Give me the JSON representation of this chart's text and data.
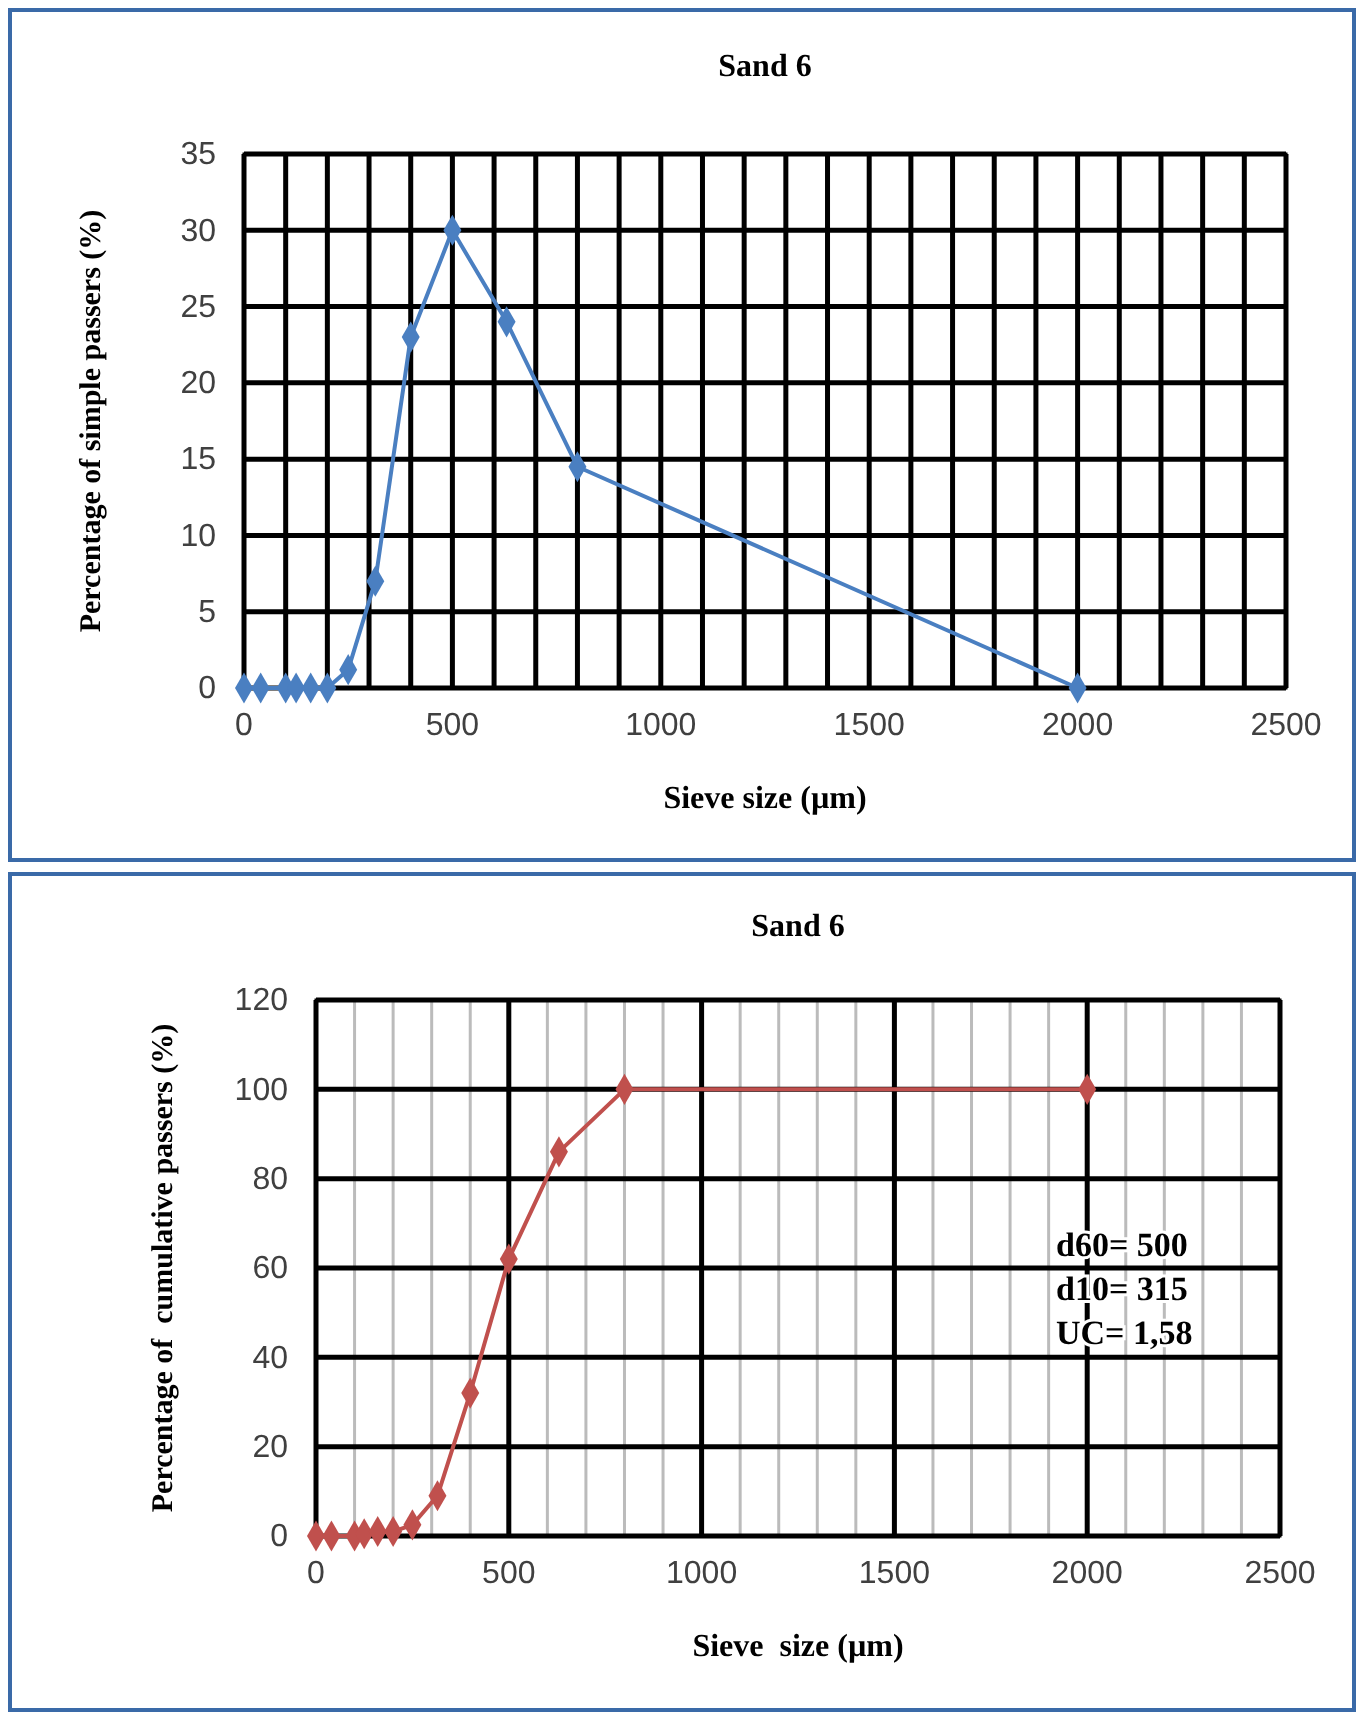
{
  "chart_data": [
    {
      "type": "line",
      "title": "Sand 6",
      "xlabel": "Sieve size (µm)",
      "ylabel": "Percentage of simple passers (%)",
      "x": [
        0,
        40,
        100,
        125,
        160,
        200,
        250,
        315,
        400,
        500,
        630,
        800,
        2000
      ],
      "series": [
        {
          "color": "#4a7fc1",
          "values": [
            0,
            0,
            0,
            0,
            0,
            0,
            1.2,
            7,
            23,
            30,
            24,
            14.5,
            0
          ]
        }
      ],
      "xlim": [
        0,
        2500
      ],
      "ylim": [
        0,
        35
      ],
      "xticks": [
        0,
        {
          "value": 100,
          "label": null
        },
        {
          "value": 200,
          "label": null
        },
        {
          "value": 300,
          "label": null
        },
        {
          "value": 400,
          "label": null
        },
        500,
        {
          "value": 600,
          "label": null
        },
        {
          "value": 700,
          "label": null
        },
        {
          "value": 800,
          "label": null
        },
        {
          "value": 900,
          "label": null
        },
        1000,
        {
          "value": 1100,
          "label": null
        },
        {
          "value": 1200,
          "label": null
        },
        {
          "value": 1300,
          "label": null
        },
        {
          "value": 1400,
          "label": null
        },
        1500,
        {
          "value": 1600,
          "label": null
        },
        {
          "value": 1700,
          "label": null
        },
        {
          "value": 1800,
          "label": null
        },
        {
          "value": 1900,
          "label": null
        },
        2000,
        {
          "value": 2100,
          "label": null
        },
        {
          "value": 2200,
          "label": null
        },
        {
          "value": 2300,
          "label": null
        },
        {
          "value": 2400,
          "label": null
        },
        2500
      ],
      "yticks": [
        0,
        5,
        10,
        15,
        20,
        25,
        30,
        35
      ],
      "grid": true,
      "marker": "diamond",
      "line_style": "solid"
    },
    {
      "type": "line",
      "title": "Sand 6",
      "xlabel": "Sieve  size (µm)",
      "ylabel": "Percentage of  cumulative passers (%)",
      "x": [
        0,
        40,
        100,
        125,
        160,
        200,
        250,
        315,
        400,
        500,
        630,
        800,
        2000
      ],
      "series": [
        {
          "color": "#c0504d",
          "values": [
            0,
            0,
            0,
            0.5,
            1,
            1,
            2.5,
            9,
            32,
            62,
            86,
            100,
            100
          ]
        }
      ],
      "xlim": [
        0,
        2500
      ],
      "ylim": [
        0,
        120
      ],
      "xticks": [
        0,
        {
          "value": 100,
          "label": null
        },
        {
          "value": 200,
          "label": null
        },
        {
          "value": 300,
          "label": null
        },
        {
          "value": 400,
          "label": null
        },
        500,
        {
          "value": 600,
          "label": null
        },
        {
          "value": 700,
          "label": null
        },
        {
          "value": 800,
          "label": null
        },
        {
          "value": 900,
          "label": null
        },
        1000,
        {
          "value": 1100,
          "label": null
        },
        {
          "value": 1200,
          "label": null
        },
        {
          "value": 1300,
          "label": null
        },
        {
          "value": 1400,
          "label": null
        },
        1500,
        {
          "value": 1600,
          "label": null
        },
        {
          "value": 1700,
          "label": null
        },
        {
          "value": 1800,
          "label": null
        },
        {
          "value": 1900,
          "label": null
        },
        2000,
        {
          "value": 2100,
          "label": null
        },
        {
          "value": 2200,
          "label": null
        },
        {
          "value": 2300,
          "label": null
        },
        {
          "value": 2400,
          "label": null
        },
        2500
      ],
      "yticks": [
        0,
        20,
        40,
        60,
        80,
        100,
        120
      ],
      "grid": true,
      "marker": "diamond",
      "line_style": "solid",
      "annotations": [
        "d60= 500",
        "d10= 315",
        "UC= 1,58"
      ]
    }
  ]
}
